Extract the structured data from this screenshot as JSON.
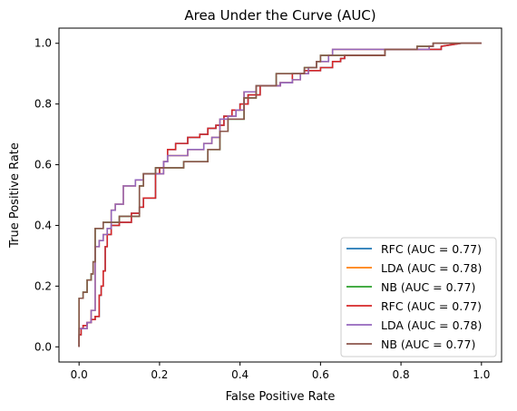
{
  "chart_data": {
    "type": "line",
    "title": "Area Under the Curve (AUC)",
    "xlabel": "False Positive Rate",
    "ylabel": "True Positive Rate",
    "xlim": [
      -0.05,
      1.05
    ],
    "ylim": [
      -0.05,
      1.05
    ],
    "xticks": [
      "0.0",
      "0.2",
      "0.4",
      "0.6",
      "0.8",
      "1.0"
    ],
    "yticks": [
      "0.0",
      "0.2",
      "0.4",
      "0.6",
      "0.8",
      "1.0"
    ],
    "grid": false,
    "legend_position": "lower-right",
    "series": [
      {
        "name": "RFC (AUC = 0.77)",
        "color": "#1f77b4",
        "x": [
          0.0,
          0.0,
          0.005,
          0.005,
          0.01,
          0.01,
          0.02,
          0.02,
          0.03,
          0.03,
          0.04,
          0.04,
          0.05,
          0.05,
          0.055,
          0.055,
          0.06,
          0.06,
          0.065,
          0.065,
          0.07,
          0.07,
          0.08,
          0.08,
          0.1,
          0.1,
          0.13,
          0.13,
          0.15,
          0.15,
          0.16,
          0.16,
          0.19,
          0.19,
          0.2,
          0.2,
          0.21,
          0.21,
          0.22,
          0.22,
          0.24,
          0.24,
          0.27,
          0.27,
          0.3,
          0.3,
          0.32,
          0.32,
          0.34,
          0.34,
          0.36,
          0.36,
          0.38,
          0.38,
          0.4,
          0.4,
          0.42,
          0.42,
          0.45,
          0.45,
          0.5,
          0.5,
          0.53,
          0.53,
          0.56,
          0.56,
          0.6,
          0.6,
          0.63,
          0.63,
          0.65,
          0.65,
          0.66,
          0.66,
          0.76,
          0.76,
          0.85,
          0.85,
          0.9,
          0.9,
          0.95,
          1.0
        ],
        "y": [
          0.0,
          0.04,
          0.04,
          0.06,
          0.06,
          0.07,
          0.07,
          0.08,
          0.08,
          0.09,
          0.09,
          0.1,
          0.1,
          0.17,
          0.17,
          0.2,
          0.2,
          0.25,
          0.25,
          0.33,
          0.33,
          0.37,
          0.37,
          0.4,
          0.4,
          0.41,
          0.41,
          0.44,
          0.44,
          0.46,
          0.46,
          0.49,
          0.49,
          0.57,
          0.57,
          0.59,
          0.59,
          0.61,
          0.61,
          0.65,
          0.65,
          0.67,
          0.67,
          0.69,
          0.69,
          0.7,
          0.7,
          0.72,
          0.72,
          0.73,
          0.73,
          0.76,
          0.76,
          0.78,
          0.78,
          0.8,
          0.8,
          0.83,
          0.83,
          0.86,
          0.86,
          0.87,
          0.87,
          0.9,
          0.9,
          0.91,
          0.91,
          0.92,
          0.92,
          0.94,
          0.94,
          0.95,
          0.95,
          0.96,
          0.96,
          0.98,
          0.98,
          0.98,
          0.98,
          0.99,
          1.0,
          1.0
        ]
      },
      {
        "name": "LDA (AUC = 0.78)",
        "color": "#ff7f0e",
        "x": [
          0.0,
          0.0,
          0.02,
          0.02,
          0.03,
          0.03,
          0.04,
          0.04,
          0.05,
          0.05,
          0.06,
          0.06,
          0.07,
          0.07,
          0.08,
          0.08,
          0.09,
          0.09,
          0.11,
          0.11,
          0.14,
          0.14,
          0.16,
          0.16,
          0.21,
          0.21,
          0.22,
          0.22,
          0.27,
          0.27,
          0.31,
          0.31,
          0.33,
          0.33,
          0.35,
          0.35,
          0.37,
          0.37,
          0.39,
          0.39,
          0.41,
          0.41,
          0.44,
          0.44,
          0.5,
          0.5,
          0.53,
          0.53,
          0.55,
          0.55,
          0.57,
          0.57,
          0.59,
          0.59,
          0.61,
          0.61,
          0.62,
          0.62,
          0.63,
          0.63,
          0.64,
          0.64,
          0.87,
          0.87,
          0.88,
          0.88,
          1.0
        ],
        "y": [
          0.0,
          0.06,
          0.06,
          0.08,
          0.08,
          0.12,
          0.12,
          0.33,
          0.33,
          0.35,
          0.35,
          0.37,
          0.37,
          0.39,
          0.39,
          0.45,
          0.45,
          0.47,
          0.47,
          0.53,
          0.53,
          0.55,
          0.55,
          0.57,
          0.57,
          0.61,
          0.61,
          0.63,
          0.63,
          0.65,
          0.65,
          0.67,
          0.67,
          0.69,
          0.69,
          0.75,
          0.75,
          0.76,
          0.76,
          0.78,
          0.78,
          0.84,
          0.84,
          0.86,
          0.86,
          0.87,
          0.87,
          0.88,
          0.88,
          0.9,
          0.9,
          0.92,
          0.92,
          0.94,
          0.94,
          0.94,
          0.94,
          0.96,
          0.96,
          0.98,
          0.98,
          0.98,
          0.98,
          0.99,
          0.99,
          1.0,
          1.0
        ]
      },
      {
        "name": "NB (AUC = 0.77)",
        "color": "#2ca02c",
        "x": [
          0.0,
          0.0,
          0.01,
          0.01,
          0.02,
          0.02,
          0.03,
          0.03,
          0.035,
          0.035,
          0.04,
          0.04,
          0.06,
          0.06,
          0.1,
          0.1,
          0.15,
          0.15,
          0.16,
          0.16,
          0.19,
          0.19,
          0.26,
          0.26,
          0.32,
          0.32,
          0.35,
          0.35,
          0.37,
          0.37,
          0.41,
          0.41,
          0.44,
          0.44,
          0.49,
          0.49,
          0.56,
          0.56,
          0.59,
          0.59,
          0.6,
          0.6,
          0.76,
          0.76,
          0.84,
          0.84,
          0.88,
          0.88,
          0.95,
          0.95,
          1.0
        ],
        "y": [
          0.0,
          0.16,
          0.16,
          0.18,
          0.18,
          0.22,
          0.22,
          0.24,
          0.24,
          0.28,
          0.28,
          0.39,
          0.39,
          0.41,
          0.41,
          0.43,
          0.43,
          0.53,
          0.53,
          0.57,
          0.57,
          0.59,
          0.59,
          0.61,
          0.61,
          0.65,
          0.65,
          0.71,
          0.71,
          0.75,
          0.75,
          0.82,
          0.82,
          0.86,
          0.86,
          0.9,
          0.9,
          0.92,
          0.92,
          0.94,
          0.94,
          0.96,
          0.96,
          0.98,
          0.98,
          0.99,
          0.99,
          1.0,
          1.0,
          1.0,
          1.0
        ]
      },
      {
        "name": "RFC (AUC = 0.77)",
        "color": "#d62728",
        "x": [
          0.0,
          0.0,
          0.005,
          0.005,
          0.01,
          0.01,
          0.02,
          0.02,
          0.03,
          0.03,
          0.04,
          0.04,
          0.05,
          0.05,
          0.055,
          0.055,
          0.06,
          0.06,
          0.065,
          0.065,
          0.07,
          0.07,
          0.08,
          0.08,
          0.1,
          0.1,
          0.13,
          0.13,
          0.15,
          0.15,
          0.16,
          0.16,
          0.19,
          0.19,
          0.2,
          0.2,
          0.21,
          0.21,
          0.22,
          0.22,
          0.24,
          0.24,
          0.27,
          0.27,
          0.3,
          0.3,
          0.32,
          0.32,
          0.34,
          0.34,
          0.36,
          0.36,
          0.38,
          0.38,
          0.4,
          0.4,
          0.42,
          0.42,
          0.45,
          0.45,
          0.5,
          0.5,
          0.53,
          0.53,
          0.56,
          0.56,
          0.6,
          0.6,
          0.63,
          0.63,
          0.65,
          0.65,
          0.66,
          0.66,
          0.76,
          0.76,
          0.85,
          0.85,
          0.9,
          0.9,
          0.95,
          1.0
        ],
        "y": [
          0.0,
          0.04,
          0.04,
          0.06,
          0.06,
          0.07,
          0.07,
          0.08,
          0.08,
          0.09,
          0.09,
          0.1,
          0.1,
          0.17,
          0.17,
          0.2,
          0.2,
          0.25,
          0.25,
          0.33,
          0.33,
          0.37,
          0.37,
          0.4,
          0.4,
          0.41,
          0.41,
          0.44,
          0.44,
          0.46,
          0.46,
          0.49,
          0.49,
          0.57,
          0.57,
          0.59,
          0.59,
          0.61,
          0.61,
          0.65,
          0.65,
          0.67,
          0.67,
          0.69,
          0.69,
          0.7,
          0.7,
          0.72,
          0.72,
          0.73,
          0.73,
          0.76,
          0.76,
          0.78,
          0.78,
          0.8,
          0.8,
          0.83,
          0.83,
          0.86,
          0.86,
          0.87,
          0.87,
          0.9,
          0.9,
          0.91,
          0.91,
          0.92,
          0.92,
          0.94,
          0.94,
          0.95,
          0.95,
          0.96,
          0.96,
          0.98,
          0.98,
          0.98,
          0.98,
          0.99,
          1.0,
          1.0
        ]
      },
      {
        "name": "LDA (AUC = 0.78)",
        "color": "#9467bd",
        "x": [
          0.0,
          0.0,
          0.02,
          0.02,
          0.03,
          0.03,
          0.04,
          0.04,
          0.05,
          0.05,
          0.06,
          0.06,
          0.07,
          0.07,
          0.08,
          0.08,
          0.09,
          0.09,
          0.11,
          0.11,
          0.14,
          0.14,
          0.16,
          0.16,
          0.21,
          0.21,
          0.22,
          0.22,
          0.27,
          0.27,
          0.31,
          0.31,
          0.33,
          0.33,
          0.35,
          0.35,
          0.37,
          0.37,
          0.39,
          0.39,
          0.41,
          0.41,
          0.44,
          0.44,
          0.5,
          0.5,
          0.53,
          0.53,
          0.55,
          0.55,
          0.57,
          0.57,
          0.59,
          0.59,
          0.61,
          0.61,
          0.62,
          0.62,
          0.63,
          0.63,
          0.64,
          0.64,
          0.87,
          0.87,
          0.88,
          0.88,
          1.0
        ],
        "y": [
          0.0,
          0.06,
          0.06,
          0.08,
          0.08,
          0.12,
          0.12,
          0.33,
          0.33,
          0.35,
          0.35,
          0.37,
          0.37,
          0.39,
          0.39,
          0.45,
          0.45,
          0.47,
          0.47,
          0.53,
          0.53,
          0.55,
          0.55,
          0.57,
          0.57,
          0.61,
          0.61,
          0.63,
          0.63,
          0.65,
          0.65,
          0.67,
          0.67,
          0.69,
          0.69,
          0.75,
          0.75,
          0.76,
          0.76,
          0.78,
          0.78,
          0.84,
          0.84,
          0.86,
          0.86,
          0.87,
          0.87,
          0.88,
          0.88,
          0.9,
          0.9,
          0.92,
          0.92,
          0.94,
          0.94,
          0.94,
          0.94,
          0.96,
          0.96,
          0.98,
          0.98,
          0.98,
          0.98,
          0.99,
          0.99,
          1.0,
          1.0
        ]
      },
      {
        "name": "NB (AUC = 0.77)",
        "color": "#8c564b",
        "x": [
          0.0,
          0.0,
          0.01,
          0.01,
          0.02,
          0.02,
          0.03,
          0.03,
          0.035,
          0.035,
          0.04,
          0.04,
          0.06,
          0.06,
          0.1,
          0.1,
          0.15,
          0.15,
          0.16,
          0.16,
          0.19,
          0.19,
          0.26,
          0.26,
          0.32,
          0.32,
          0.35,
          0.35,
          0.37,
          0.37,
          0.41,
          0.41,
          0.44,
          0.44,
          0.49,
          0.49,
          0.56,
          0.56,
          0.59,
          0.59,
          0.6,
          0.6,
          0.76,
          0.76,
          0.84,
          0.84,
          0.88,
          0.88,
          0.95,
          0.95,
          1.0
        ],
        "y": [
          0.0,
          0.16,
          0.16,
          0.18,
          0.18,
          0.22,
          0.22,
          0.24,
          0.24,
          0.28,
          0.28,
          0.39,
          0.39,
          0.41,
          0.41,
          0.43,
          0.43,
          0.53,
          0.53,
          0.57,
          0.57,
          0.59,
          0.59,
          0.61,
          0.61,
          0.65,
          0.65,
          0.71,
          0.71,
          0.75,
          0.75,
          0.82,
          0.82,
          0.86,
          0.86,
          0.9,
          0.9,
          0.92,
          0.92,
          0.94,
          0.94,
          0.96,
          0.96,
          0.98,
          0.98,
          0.99,
          0.99,
          1.0,
          1.0,
          1.0,
          1.0
        ]
      }
    ]
  }
}
